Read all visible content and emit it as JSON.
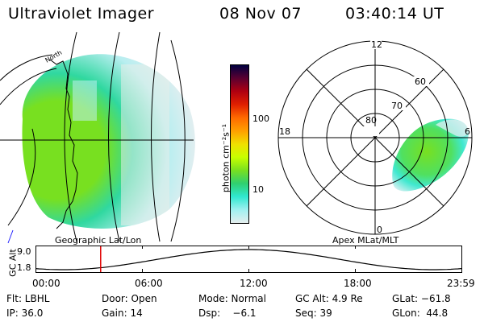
{
  "header": {
    "title": "Ultraviolet Imager",
    "date": "08 Nov 07",
    "time": "03:40:14 UT"
  },
  "geo_panel": {
    "caption": "Geographic Lat/Lon",
    "coast_label": "North"
  },
  "colorbar": {
    "unit_label": "photon cm⁻²s⁻¹",
    "ticks": [
      "100",
      "10"
    ],
    "colors": [
      "#000040",
      "#5a0030",
      "#b00010",
      "#e02000",
      "#ff6a00",
      "#ffa000",
      "#f0e000",
      "#c8ff00",
      "#78e020",
      "#30d070",
      "#30e8d0",
      "#a0f0f0",
      "#e4eeee"
    ]
  },
  "polar_panel": {
    "caption": "Apex MLat/MLT",
    "mlt_labels": {
      "top": "12",
      "bottom": "0",
      "left": "18",
      "right": "6"
    },
    "mlat_labels": [
      "60",
      "70",
      "80"
    ]
  },
  "timeline": {
    "axis_label": "GC Alt",
    "y_ticks": [
      "9.0",
      "1.8"
    ],
    "x_ticks": [
      "00:00",
      "06:00",
      "12:00",
      "18:00",
      "23:59"
    ],
    "current_fraction": 0.153,
    "marker_color": "#e00000",
    "curve_color": "#000000"
  },
  "info": {
    "row1": {
      "flt": "Flt: LBHL",
      "door": "Door: Open",
      "mode": "Mode: Normal",
      "gc_alt": "GC Alt: 4.9 Re",
      "glat": "GLat: −61.8"
    },
    "row2": {
      "ip": "IP: 36.0",
      "gain": "Gain: 14",
      "dsp": "Dsp:    −6.1",
      "seq": "Seq: 39",
      "glon": "GLon:  44.8"
    }
  }
}
